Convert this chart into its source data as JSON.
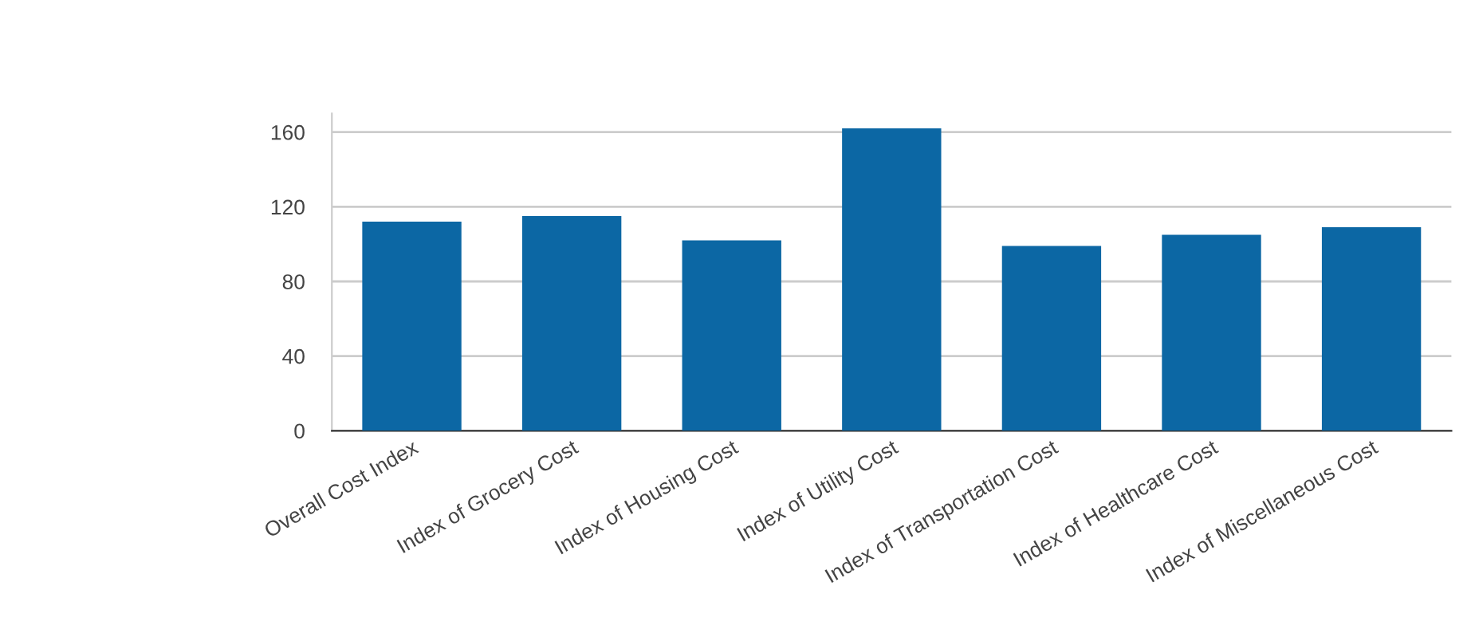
{
  "chart_data": {
    "type": "bar",
    "categories": [
      "Overall Cost Index",
      "Index of Grocery Cost",
      "Index of Housing Cost",
      "Index of Utility Cost",
      "Index of Transportation Cost",
      "Index of Healthcare Cost",
      "Index of Miscellaneous Cost"
    ],
    "values": [
      112,
      115,
      102,
      162,
      99,
      105,
      109
    ],
    "color": "#0c67a4",
    "ylim": [
      0,
      170
    ],
    "yticks": [
      0,
      40,
      80,
      120,
      160
    ],
    "grid": "y"
  }
}
